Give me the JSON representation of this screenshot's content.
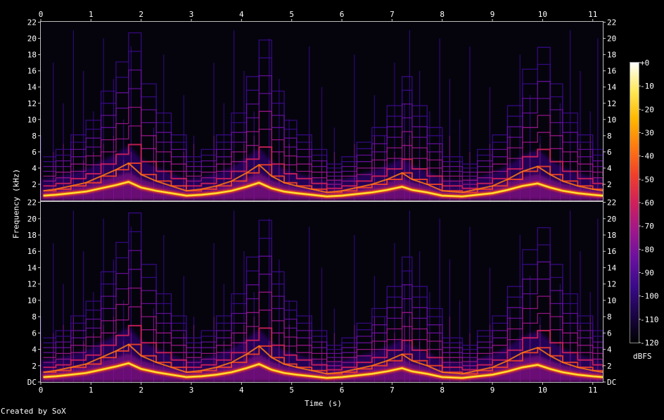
{
  "chart_data": [
    {
      "type": "heatmap",
      "channel": 1,
      "x": [
        0,
        1,
        2,
        3,
        4,
        5,
        6,
        7,
        8,
        9,
        10,
        11
      ],
      "x_tick_labels": [
        "0",
        "1",
        "2",
        "3",
        "4",
        "5",
        "6",
        "7",
        "8",
        "9",
        "10",
        "11"
      ],
      "xlim": [
        0,
        11.2
      ],
      "y_tick_labels": [
        "2",
        "4",
        "6",
        "8",
        "10",
        "12",
        "14",
        "16",
        "18",
        "20",
        "22"
      ],
      "y_values_khz": [
        2,
        4,
        6,
        8,
        10,
        12,
        14,
        16,
        18,
        20,
        22
      ],
      "ylim": [
        0,
        22.05
      ],
      "fundamental_khz": {
        "t": [
          0.05,
          0.3,
          0.6,
          0.9,
          1.2,
          1.5,
          1.75,
          2.0,
          2.3,
          2.6,
          2.9,
          3.2,
          3.5,
          3.8,
          4.1,
          4.35,
          4.6,
          4.85,
          5.1,
          5.4,
          5.7,
          6.0,
          6.3,
          6.6,
          6.9,
          7.2,
          7.4,
          7.7,
          8.0,
          8.4,
          8.7,
          9.0,
          9.3,
          9.6,
          9.9,
          10.15,
          10.4,
          10.7,
          11.0,
          11.2
        ],
        "f": [
          0.6,
          0.7,
          0.9,
          1.1,
          1.5,
          1.9,
          2.3,
          1.6,
          1.2,
          0.9,
          0.6,
          0.7,
          0.9,
          1.2,
          1.7,
          2.2,
          1.5,
          1.1,
          0.9,
          0.7,
          0.5,
          0.6,
          0.8,
          1.0,
          1.3,
          1.7,
          1.3,
          1.0,
          0.6,
          0.5,
          0.7,
          0.9,
          1.3,
          1.8,
          2.1,
          1.6,
          1.2,
          0.9,
          0.7,
          0.6
        ]
      },
      "onsets_s": [
        0.0,
        0.25,
        0.45,
        0.65,
        0.85,
        1.05,
        1.25,
        1.45,
        1.65,
        1.8,
        2.0,
        2.25,
        2.45,
        2.85,
        3.05,
        3.45,
        3.65,
        3.85,
        4.05,
        4.25,
        4.55,
        4.75,
        4.95,
        5.35,
        5.6,
        5.85,
        6.25,
        6.65,
        6.85,
        7.05,
        7.25,
        7.35,
        7.55,
        7.75,
        7.95,
        8.15,
        8.35,
        8.55,
        8.95,
        9.35,
        9.55,
        9.75,
        9.95,
        10.15,
        10.35,
        10.55,
        10.75,
        10.95,
        11.1
      ]
    },
    {
      "type": "heatmap",
      "channel": 2,
      "x": [
        0,
        1,
        2,
        3,
        4,
        5,
        6,
        7,
        8,
        9,
        10,
        11
      ],
      "x_tick_labels": [
        "0",
        "1",
        "2",
        "3",
        "4",
        "5",
        "6",
        "7",
        "8",
        "9",
        "10",
        "11"
      ],
      "xlim": [
        0,
        11.2
      ],
      "y_tick_labels": [
        "DC",
        "2",
        "4",
        "6",
        "8",
        "10",
        "12",
        "14",
        "16",
        "18",
        "20",
        "22"
      ],
      "y_values_khz": [
        0,
        2,
        4,
        6,
        8,
        10,
        12,
        14,
        16,
        18,
        20,
        22
      ],
      "ylim": [
        0,
        22.05
      ],
      "fundamental_khz": {
        "t": [
          0.05,
          0.3,
          0.6,
          0.9,
          1.2,
          1.5,
          1.75,
          2.0,
          2.3,
          2.6,
          2.9,
          3.2,
          3.5,
          3.8,
          4.1,
          4.35,
          4.6,
          4.85,
          5.1,
          5.4,
          5.7,
          6.0,
          6.3,
          6.6,
          6.9,
          7.2,
          7.4,
          7.7,
          8.0,
          8.4,
          8.7,
          9.0,
          9.3,
          9.6,
          9.9,
          10.15,
          10.4,
          10.7,
          11.0,
          11.2
        ],
        "f": [
          0.6,
          0.7,
          0.9,
          1.1,
          1.5,
          1.9,
          2.3,
          1.6,
          1.2,
          0.9,
          0.6,
          0.7,
          0.9,
          1.2,
          1.7,
          2.2,
          1.5,
          1.1,
          0.9,
          0.7,
          0.5,
          0.6,
          0.8,
          1.0,
          1.3,
          1.7,
          1.3,
          1.0,
          0.6,
          0.5,
          0.7,
          0.9,
          1.3,
          1.8,
          2.1,
          1.6,
          1.2,
          0.9,
          0.7,
          0.6
        ]
      },
      "onsets_s": [
        0.0,
        0.25,
        0.45,
        0.65,
        0.85,
        1.05,
        1.25,
        1.45,
        1.65,
        1.8,
        2.0,
        2.25,
        2.45,
        2.85,
        3.05,
        3.45,
        3.65,
        3.85,
        4.05,
        4.25,
        4.55,
        4.75,
        4.95,
        5.35,
        5.6,
        5.85,
        6.25,
        6.65,
        6.85,
        7.05,
        7.25,
        7.35,
        7.55,
        7.75,
        7.95,
        8.15,
        8.35,
        8.55,
        8.95,
        9.35,
        9.55,
        9.75,
        9.95,
        10.15,
        10.35,
        10.55,
        10.75,
        10.95,
        11.1
      ]
    }
  ],
  "axes": {
    "xlabel": "Time (s)",
    "ylabel": "Frequency (kHz)"
  },
  "colorbar": {
    "ticks": [
      "+0",
      "-10",
      "-20",
      "-30",
      "-40",
      "-50",
      "-60",
      "-70",
      "-80",
      "-90",
      "-100",
      "-110",
      "-120"
    ],
    "values_db": [
      0,
      -10,
      -20,
      -30,
      -40,
      -50,
      -60,
      -70,
      -80,
      -90,
      -100,
      -110,
      -120
    ],
    "unit_label": "dBFS",
    "colors": [
      "#000000",
      "#1a0545",
      "#3a0a8a",
      "#6a10a0",
      "#a0168c",
      "#d0205a",
      "#f0402a",
      "#ff7a10",
      "#ffb800",
      "#ffe95a",
      "#ffffff"
    ]
  },
  "footer": {
    "credit": "Created by SoX"
  }
}
